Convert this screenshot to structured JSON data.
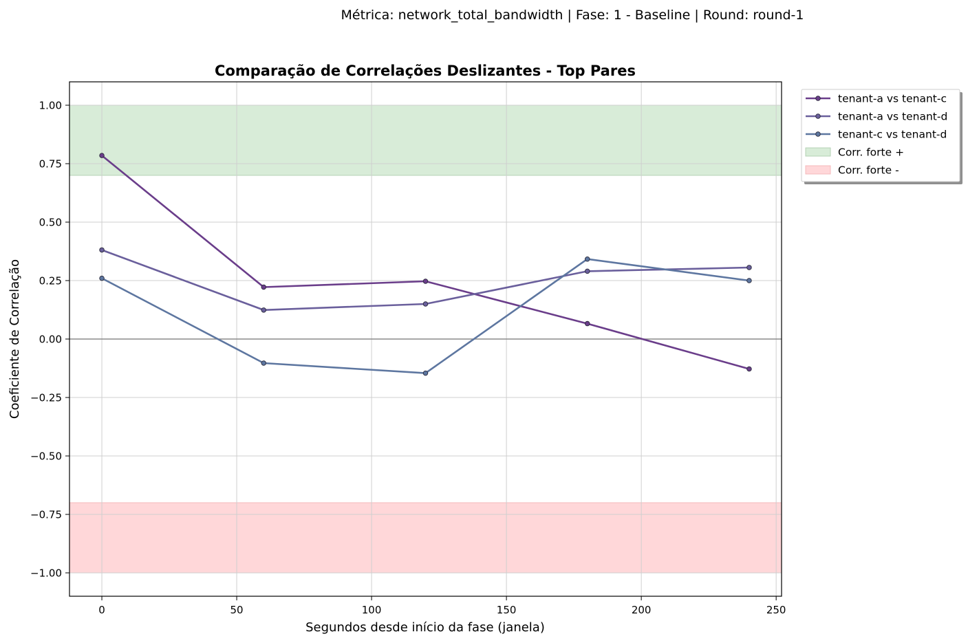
{
  "suptitle": "Métrica: network_total_bandwidth | Fase: 1 - Baseline | Round: round-1",
  "chart_data": {
    "type": "line",
    "title": "Comparação de Correlações Deslizantes - Top Pares",
    "xlabel": "Segundos desde início da fase (janela)",
    "ylabel": "Coeficiente de Correlação",
    "xlim": [
      -12,
      252
    ],
    "ylim": [
      -1.1,
      1.1
    ],
    "xticks": [
      0,
      50,
      100,
      150,
      200,
      250
    ],
    "xtick_labels": [
      "0",
      "50",
      "100",
      "150",
      "200",
      "250"
    ],
    "yticks": [
      1.0,
      0.75,
      0.5,
      0.25,
      0.0,
      -0.25,
      -0.5,
      -0.75,
      -1.0
    ],
    "ytick_labels": [
      "1.00",
      "0.75",
      "0.50",
      "0.25",
      "0.00",
      "−0.25",
      "−0.50",
      "−0.75",
      "−1.00"
    ],
    "grid": true,
    "legend_position": "outside-top-right",
    "x": [
      0,
      60,
      120,
      180,
      240
    ],
    "series": [
      {
        "name": "tenant-a vs tenant-c",
        "color": "#6a3d8a",
        "values": [
          0.785,
          0.222,
          0.247,
          0.066,
          -0.128
        ]
      },
      {
        "name": "tenant-a vs tenant-d",
        "color": "#6a5f9c",
        "values": [
          0.381,
          0.124,
          0.15,
          0.29,
          0.306
        ]
      },
      {
        "name": "tenant-c vs tenant-d",
        "color": "#5d76a0",
        "values": [
          0.26,
          -0.103,
          -0.146,
          0.342,
          0.25
        ]
      }
    ],
    "bands": [
      {
        "name": "Corr. forte +",
        "from": 0.7,
        "to": 1.0,
        "color": "#d8ecd8",
        "edge": "#b4d2b4"
      },
      {
        "name": "Corr. forte -",
        "from": -1.0,
        "to": -0.7,
        "color": "#ffd7d9",
        "edge": "#f4b8bb"
      }
    ],
    "zero_line": 0.0
  }
}
